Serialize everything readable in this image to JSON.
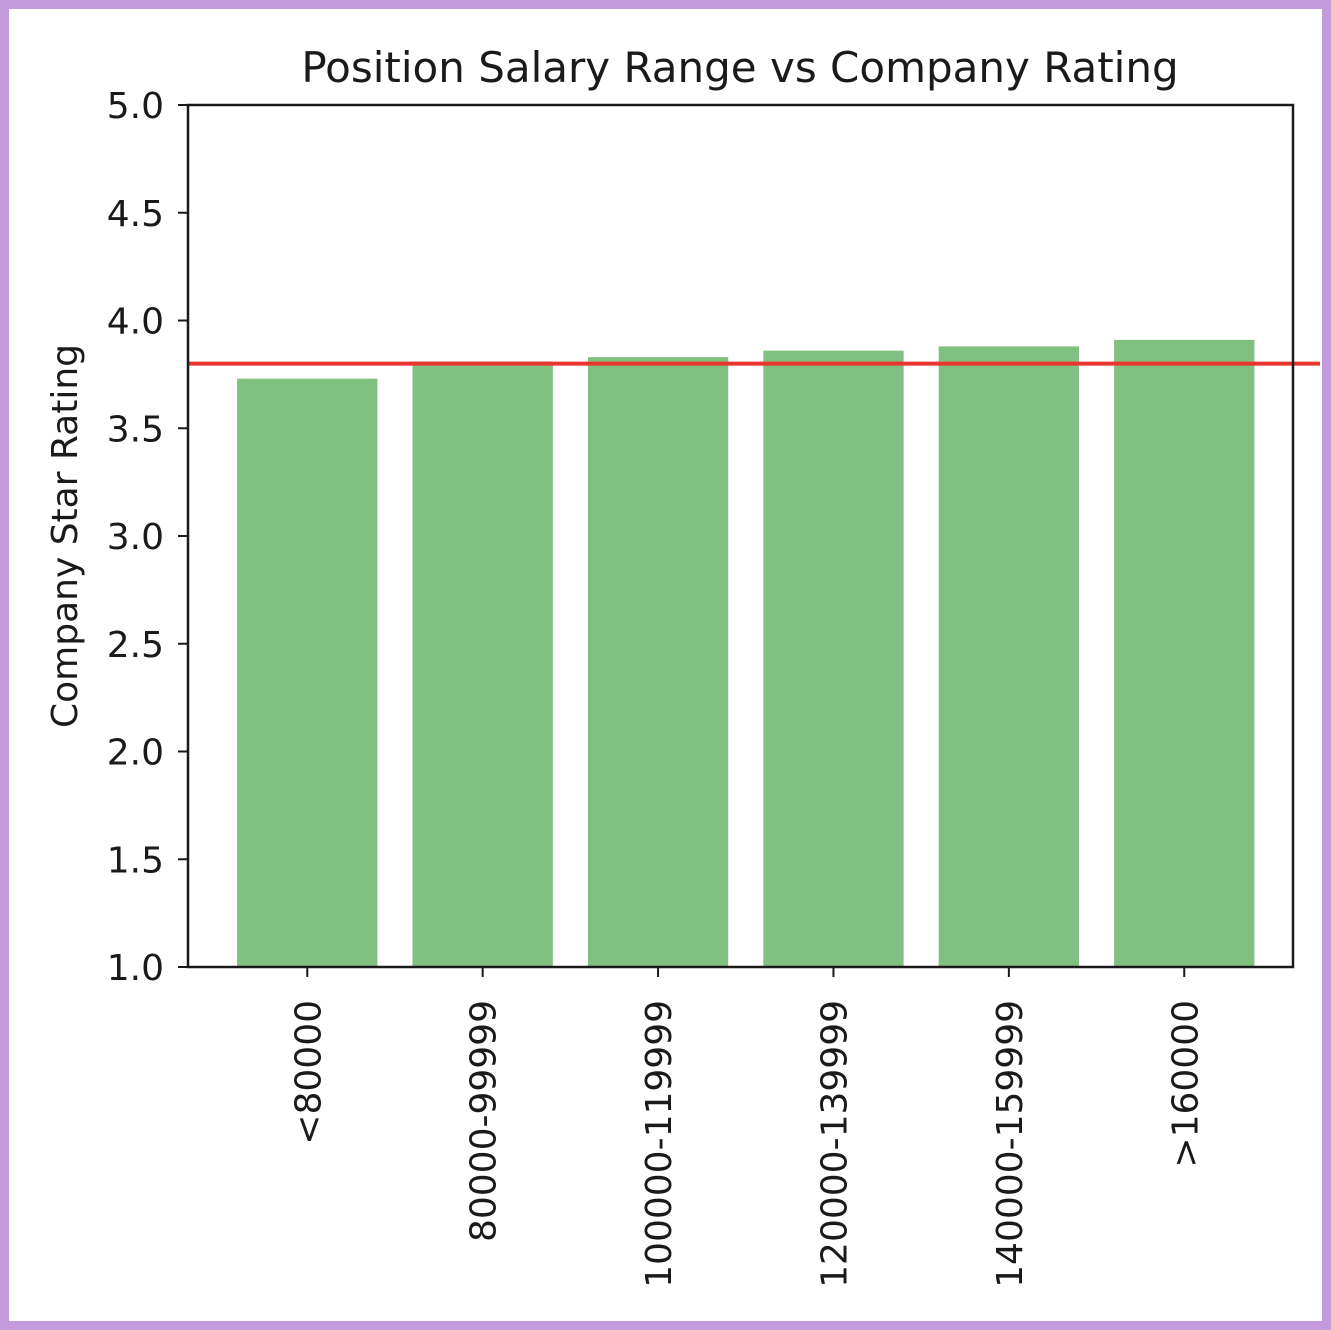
{
  "chart_data": {
    "type": "bar",
    "title": "Position Salary Range vs Company Rating",
    "xlabel": "",
    "ylabel": "Company Star Rating",
    "categories": [
      "<80000",
      "80000-99999",
      "100000-119999",
      "120000-139999",
      "140000-159999",
      ">160000"
    ],
    "values": [
      3.73,
      3.81,
      3.83,
      3.86,
      3.88,
      3.91
    ],
    "ylim": [
      1.0,
      5.0
    ],
    "yticks": [
      "1.0",
      "1.5",
      "2.0",
      "2.5",
      "3.0",
      "3.5",
      "4.0",
      "4.5",
      "5.0"
    ],
    "reference_line": 3.8,
    "bar_color": "#80c080",
    "line_color": "#e8342e",
    "grid": false
  }
}
